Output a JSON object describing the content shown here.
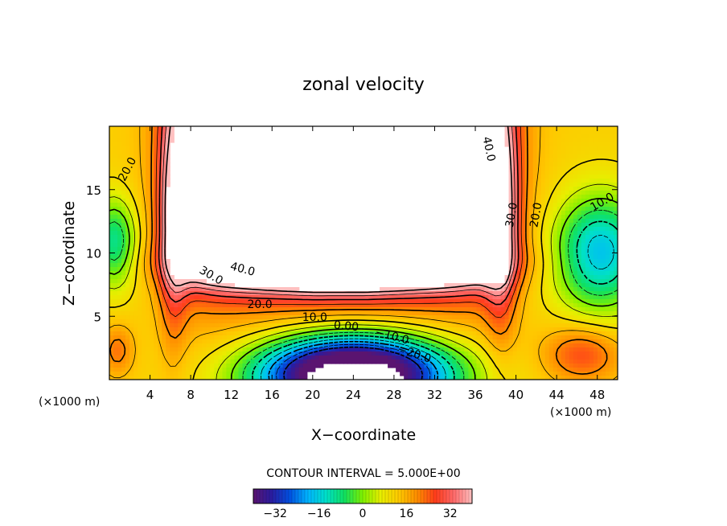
{
  "chart_data": {
    "type": "heatmap",
    "title": "zonal velocity",
    "xlabel": "X−coordinate",
    "ylabel": "Z−coordinate",
    "x_unit_left": "(×1000 m)",
    "x_unit_right": "(×1000 m)",
    "xlim": [
      0,
      50
    ],
    "ylim": [
      0,
      20
    ],
    "xticks": [
      4,
      8,
      12,
      16,
      20,
      24,
      28,
      32,
      36,
      40,
      44,
      48
    ],
    "yticks": [
      5,
      10,
      15
    ],
    "contour_interval_text": "CONTOUR INTERVAL = 5.000E+00",
    "colorbar": {
      "min": -40,
      "max": 40,
      "ticks": [
        -32,
        -16,
        0,
        16,
        32
      ],
      "tick_labels": [
        "−32",
        "−16",
        "0",
        "16",
        "32"
      ]
    },
    "contour_labels": [
      {
        "text": "20.0",
        "x": 1.8,
        "z": 16.6,
        "angle": -62
      },
      {
        "text": "40.0",
        "x": 37.3,
        "z": 18.2,
        "angle": 78
      },
      {
        "text": "30.0",
        "x": 39.6,
        "z": 13.0,
        "angle": -80
      },
      {
        "text": "20.0",
        "x": 42.0,
        "z": 13.0,
        "angle": -80
      },
      {
        "text": "10.0",
        "x": 48.5,
        "z": 14.0,
        "angle": -30
      },
      {
        "text": "40.0",
        "x": 13.1,
        "z": 8.7,
        "angle": 15
      },
      {
        "text": "30.0",
        "x": 10.0,
        "z": 8.2,
        "angle": 30
      },
      {
        "text": "20.0",
        "x": 14.8,
        "z": 5.9,
        "angle": 0
      },
      {
        "text": "10.0",
        "x": 20.2,
        "z": 4.9,
        "angle": 0
      },
      {
        "text": "0.00",
        "x": 23.3,
        "z": 4.2,
        "angle": 5
      },
      {
        "text": "−10.0",
        "x": 27.8,
        "z": 3.4,
        "angle": 15
      },
      {
        "text": "−20.0",
        "x": 30.0,
        "z": 2.0,
        "angle": 18
      }
    ]
  },
  "colors": {
    "background": "#ffffff",
    "scale": [
      "#5a1470",
      "#2a1ca0",
      "#0050e0",
      "#00b4ff",
      "#00e0c8",
      "#10e060",
      "#80f000",
      "#e8ee00",
      "#ffc800",
      "#ff8c00",
      "#ff3c1c",
      "#ff6a6a",
      "#ffc0c0"
    ]
  }
}
